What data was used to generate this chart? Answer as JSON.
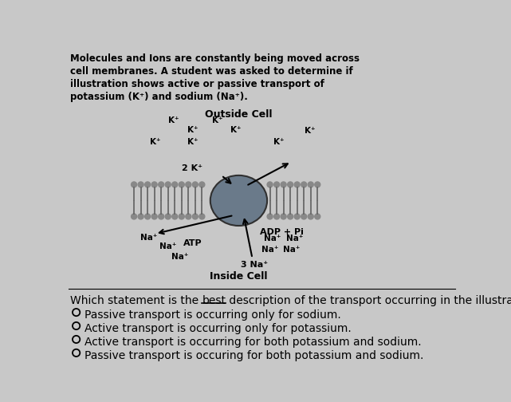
{
  "bg_color": "#c8c8c8",
  "title_lines": [
    "Molecules and Ions are constantly being moved across",
    "cell membranes. A student was asked to determine if",
    "illustration shows active or passive transport of",
    "potassium (K⁺) and sodium (Na⁺)."
  ],
  "title_fontsize": 8.5,
  "outside_label": "Outside Cell",
  "inside_label": "Inside Cell",
  "question_pre": "Which statement is the ",
  "question_underlined": "best",
  "question_post": " description of the transport occurring in the illustration?",
  "options": [
    "Passive transport is occurring only for sodium.",
    "Active transport is occurring only for potassium.",
    "Active transport is occurring for both potassium and sodium.",
    "Passive transport is occuring for both potassium and sodium."
  ],
  "protein_color": "#6a7a8a",
  "head_color": "#888888",
  "tail_color": "#606060",
  "arrow_color": "#000000"
}
